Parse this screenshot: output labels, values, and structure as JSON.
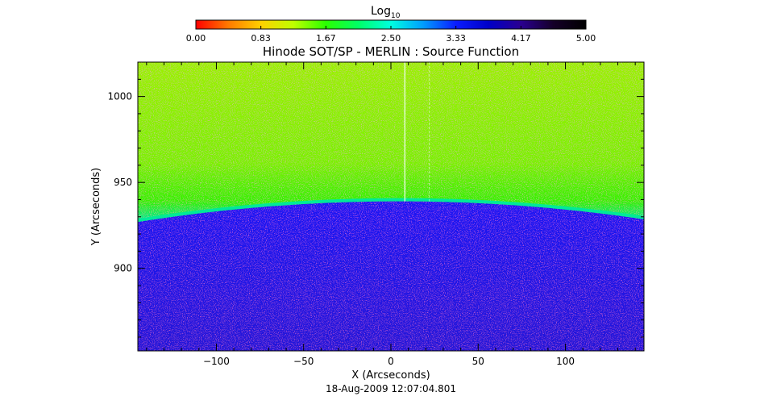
{
  "colorbar": {
    "title_main": "Log",
    "title_sub": "10",
    "ticks": [
      "0.00",
      "0.83",
      "1.67",
      "2.50",
      "3.33",
      "4.17",
      "5.00"
    ],
    "range": [
      0,
      5
    ],
    "stops": [
      "#ff0000",
      "#ff7a00",
      "#ffd000",
      "#bfff00",
      "#2aff00",
      "#00ff66",
      "#00ffe0",
      "#009cff",
      "#0a1cff",
      "#0000c8",
      "#2a0090",
      "#140028",
      "#000000"
    ]
  },
  "chart_data": {
    "type": "heatmap",
    "title": "Hinode SOT/SP - MERLIN : Source Function",
    "xlabel": "X (Arcseconds)",
    "ylabel": "Y (Arcseconds)",
    "xlim": [
      -145,
      145
    ],
    "ylim": [
      852,
      1020
    ],
    "xticks": [
      -100,
      -50,
      0,
      50,
      100
    ],
    "yticks": [
      900,
      950,
      1000
    ],
    "xtick_labels": [
      "−100",
      "−50",
      "0",
      "50",
      "100"
    ],
    "ytick_labels": [
      "900",
      "950",
      "1000"
    ],
    "limb": {
      "description": "sharp boundary between off-limb (log ~1.6-2.0) and on-disk (log ~4.0) values",
      "peak_x": 5,
      "peak_y": 939,
      "edge_y": 927,
      "off_disk_log_value": 1.8,
      "on_disk_log_value": 4.0
    },
    "artifacts": [
      {
        "type": "vertical-line",
        "x": 8
      },
      {
        "type": "vertical-line",
        "x": 22
      }
    ],
    "colors": {
      "off_disk": "#39f000",
      "off_disk_far": "#9cf000",
      "limb_band": "#00e89a",
      "on_disk": "#1a10e8"
    },
    "grid": false,
    "legend": "none",
    "footer": "18-Aug-2009 12:07:04.801"
  }
}
